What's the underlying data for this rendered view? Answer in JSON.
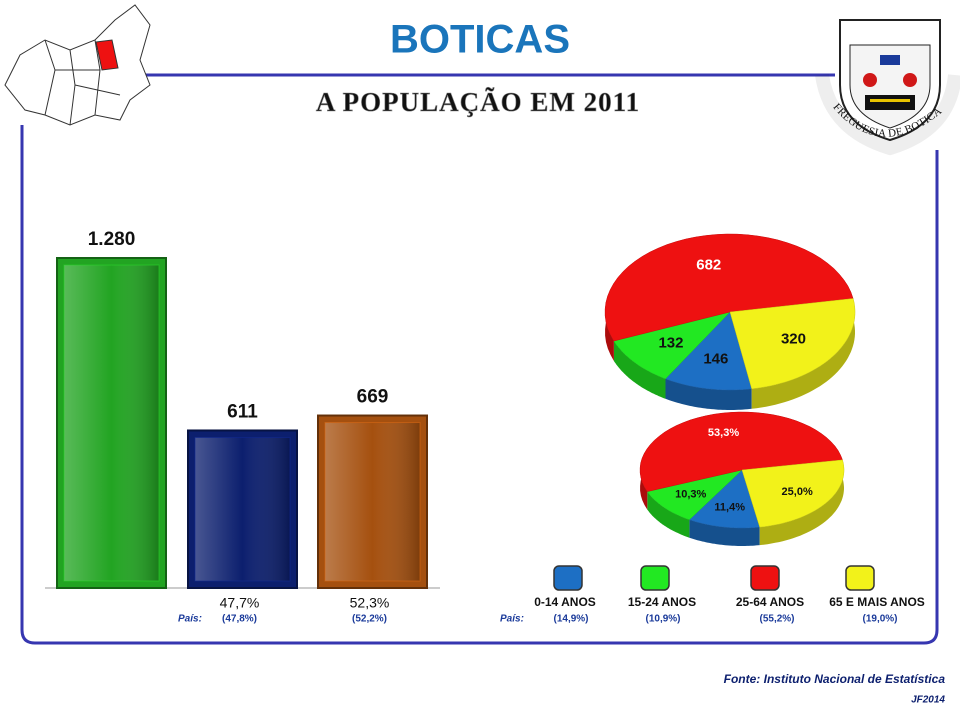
{
  "header": {
    "title": "BOTICAS",
    "subtitle": "A POPULAÇÃO EM 2011",
    "crest_text": "FREGUESIA DE BOTICAS"
  },
  "chart_data": [
    {
      "type": "bar",
      "categories": [
        null,
        null,
        null
      ],
      "values": [
        1280,
        611,
        669
      ],
      "value_labels": [
        "1.280",
        "611",
        "669"
      ],
      "colors": [
        "#22a422",
        "#0c1f6e",
        "#a5500f"
      ],
      "share_labels": [
        null,
        "47,7%",
        "52,3%"
      ],
      "country_label": "País:",
      "country_labels": [
        null,
        "(47,8%)",
        "(52,2%)"
      ]
    },
    {
      "type": "pie",
      "categories": [
        "0-14 ANOS",
        "15-24 ANOS",
        "25-64 ANOS",
        "65 E MAIS ANOS"
      ],
      "values": [
        146,
        132,
        682,
        320
      ],
      "colors": [
        "#1d6fc4",
        "#22e822",
        "#ee1111",
        "#f2f21a"
      ],
      "label_colors": [
        "#111111",
        "#111111",
        "#ffffff",
        "#111111"
      ]
    },
    {
      "type": "pie",
      "values": [
        11.4,
        10.3,
        53.3,
        25.0
      ],
      "value_labels": [
        "11,4%",
        "10,3%",
        "53,3%",
        "25,0%"
      ],
      "colors": [
        "#1d6fc4",
        "#22e822",
        "#ee1111",
        "#f2f21a"
      ],
      "label_colors": [
        "#111111",
        "#111111",
        "#ffffff",
        "#111111"
      ],
      "country_label": "País:",
      "country_labels": [
        "(14,9%)",
        "(10,9%)",
        "(55,2%)",
        "(19,0%)"
      ]
    }
  ],
  "footer": {
    "source": "Fonte: Instituto Nacional de Estatística",
    "credit": "JF2014"
  }
}
